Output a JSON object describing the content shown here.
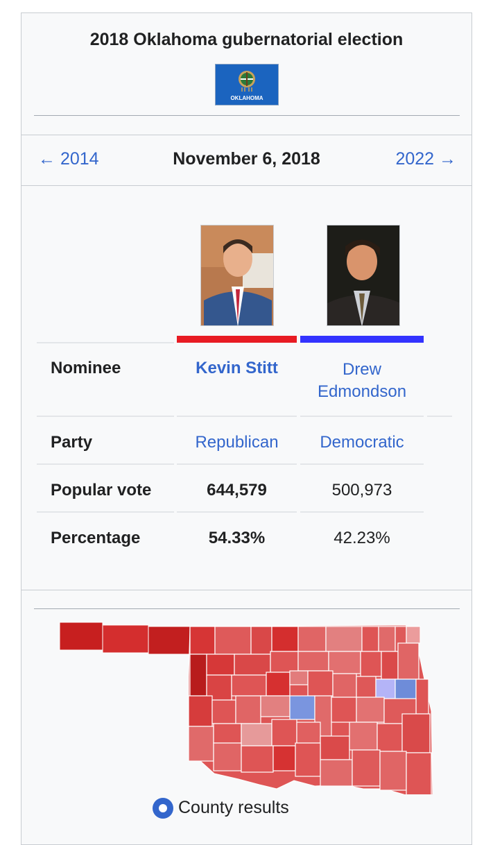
{
  "infobox": {
    "title": "2018 Oklahoma gubernatorial election",
    "flag_text": "OKLAHOMA",
    "prev_label": "← 2014",
    "election_date": "November 6, 2018",
    "next_label": "2022 →"
  },
  "candidates": [
    {
      "name": "Kevin Stitt",
      "party": "Republican",
      "popular_vote": "644,579",
      "percentage": "54.33%",
      "color": "#e81b23",
      "winner": true
    },
    {
      "name": "Drew Edmondson",
      "party": "Democratic",
      "popular_vote": "500,973",
      "percentage": "42.23%",
      "color": "#3333ff",
      "winner": false
    }
  ],
  "rows": {
    "nominee_label": "Nominee",
    "party_label": "Party",
    "vote_label": "Popular vote",
    "percentage_label": "Percentage"
  },
  "map": {
    "radio_label": "County results"
  },
  "colors": {
    "link": "#3366cc",
    "rep_dark": "#b31b1b",
    "rep_mid": "#d72f30",
    "rep_light": "#e27f7f",
    "dem_light": "#7996e2"
  }
}
